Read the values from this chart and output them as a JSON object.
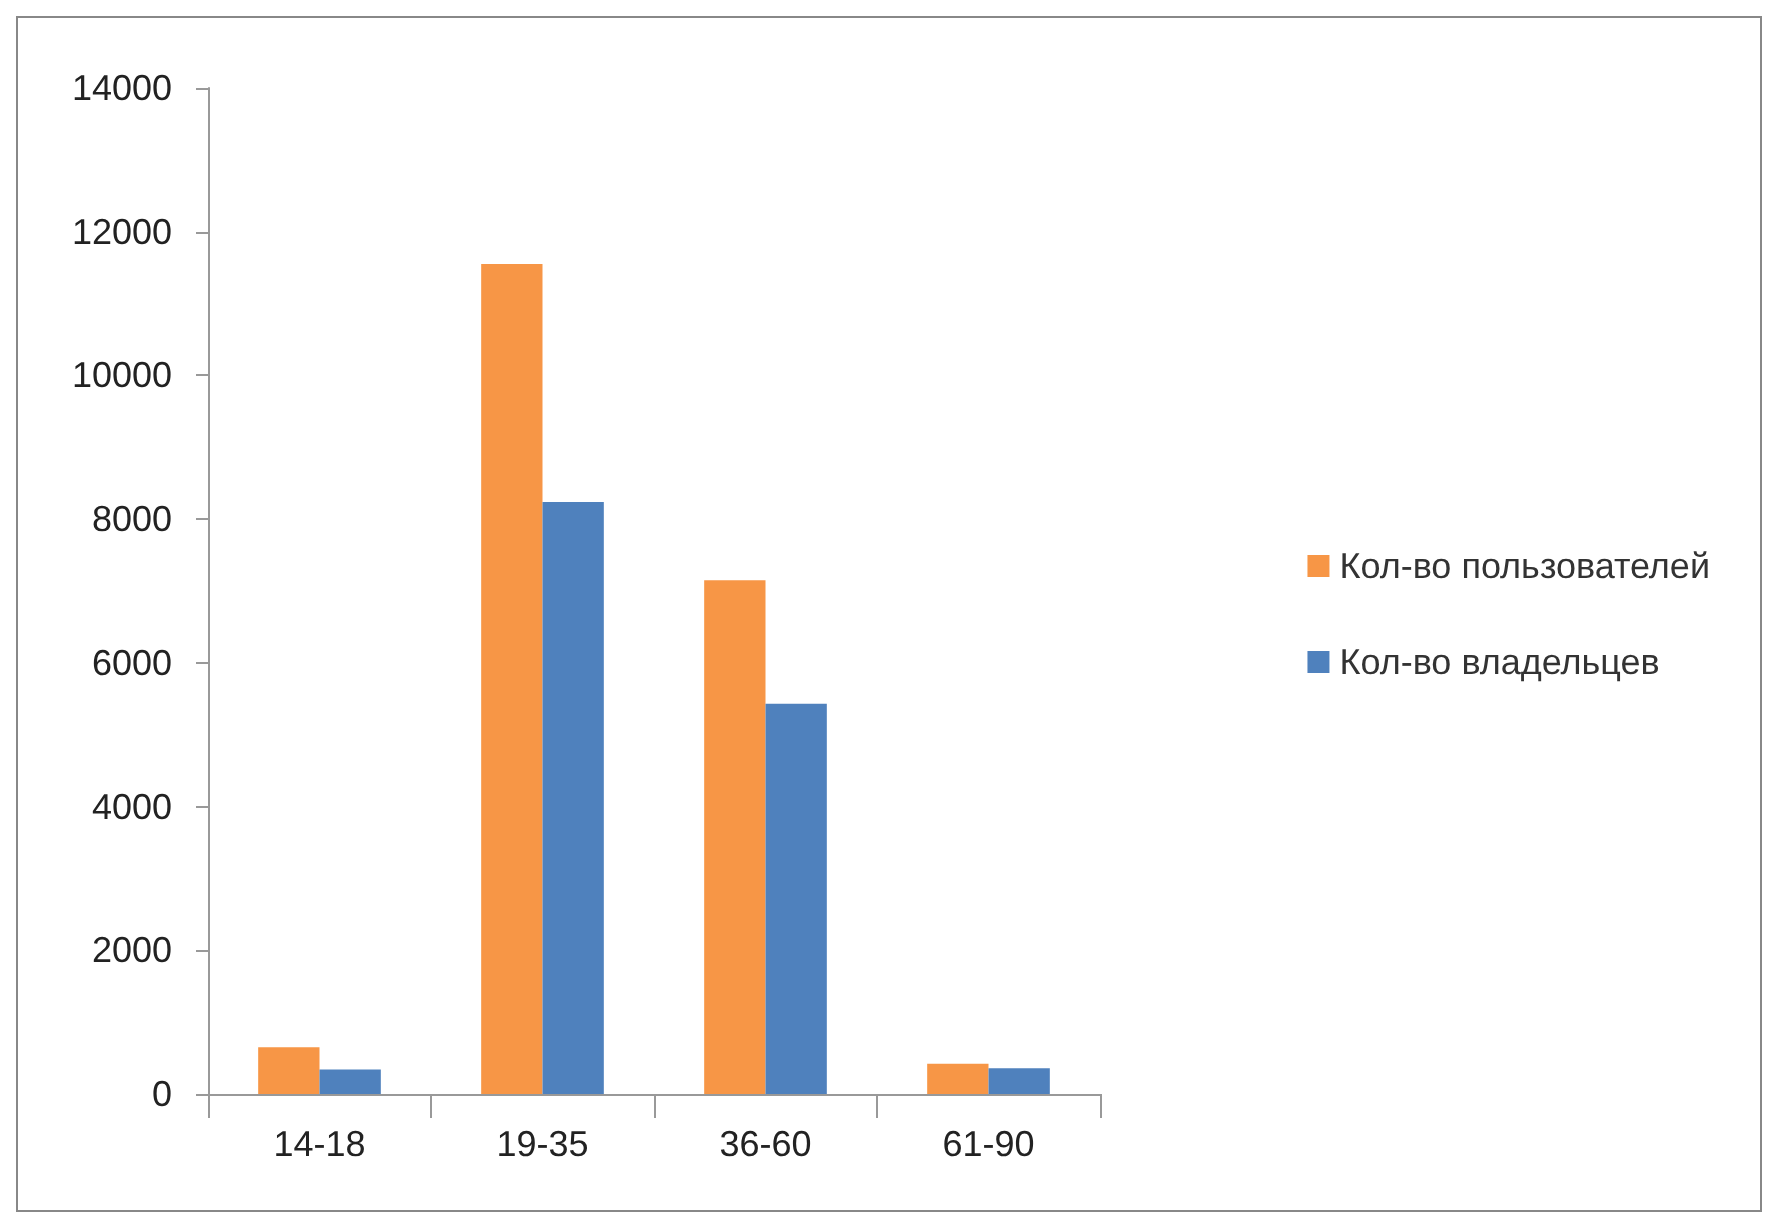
{
  "chart_data": {
    "type": "bar",
    "categories": [
      "14-18",
      "19-35",
      "36-60",
      "61-90"
    ],
    "series": [
      {
        "name": "Кол-во пользователей",
        "color": "#f79646",
        "values": [
          650,
          11550,
          7150,
          420
        ]
      },
      {
        "name": "Кол-во владельцев",
        "color": "#4f81bd",
        "values": [
          340,
          8240,
          5430,
          360
        ]
      }
    ],
    "ylim": [
      0,
      14000
    ],
    "yticks": [
      0,
      2000,
      4000,
      6000,
      8000,
      10000,
      12000,
      14000
    ],
    "grid": false,
    "legend": "right"
  }
}
